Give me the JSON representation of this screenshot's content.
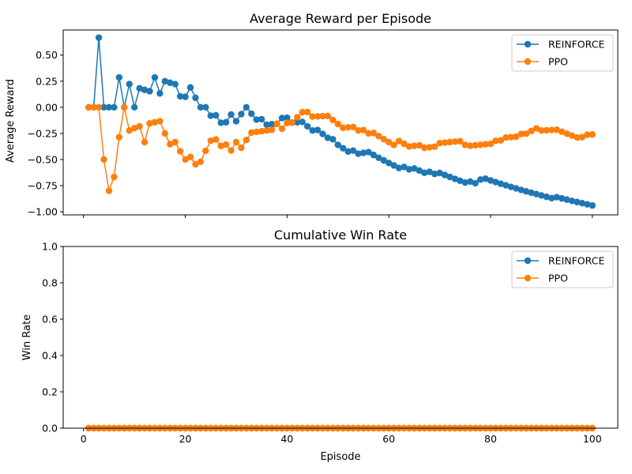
{
  "chart_data": [
    {
      "type": "line",
      "title": "Average Reward per Episode",
      "xlabel": "",
      "ylabel": "Average Reward",
      "xlim": [
        -4,
        105
      ],
      "ylim": [
        -1.03,
        0.74
      ],
      "xticks": [
        0,
        20,
        40,
        60,
        80,
        100
      ],
      "xtick_labels_visible": false,
      "yticks": [
        -1.0,
        -0.75,
        -0.5,
        -0.25,
        0.0,
        0.25,
        0.5
      ],
      "ytick_labels": [
        "−1.00",
        "−0.75",
        "−0.50",
        "−0.25",
        "0.00",
        "0.25",
        "0.50"
      ],
      "grid": false,
      "legend": "top-right",
      "x": [
        1,
        2,
        3,
        4,
        5,
        6,
        7,
        8,
        9,
        10,
        11,
        12,
        13,
        14,
        15,
        16,
        17,
        18,
        19,
        20,
        21,
        22,
        23,
        24,
        25,
        26,
        27,
        28,
        29,
        30,
        31,
        32,
        33,
        34,
        35,
        36,
        37,
        38,
        39,
        40,
        41,
        42,
        43,
        44,
        45,
        46,
        47,
        48,
        49,
        50,
        51,
        52,
        53,
        54,
        55,
        56,
        57,
        58,
        59,
        60,
        61,
        62,
        63,
        64,
        65,
        66,
        67,
        68,
        69,
        70,
        71,
        72,
        73,
        74,
        75,
        76,
        77,
        78,
        79,
        80,
        81,
        82,
        83,
        84,
        85,
        86,
        87,
        88,
        89,
        90,
        91,
        92,
        93,
        94,
        95,
        96,
        97,
        98,
        99,
        100
      ],
      "series": [
        {
          "name": "REINFORCE",
          "color": "#1f77b4",
          "values": [
            0.0,
            0.0,
            0.667,
            0.0,
            0.0,
            0.0,
            0.286,
            0.0,
            0.222,
            0.0,
            0.182,
            0.167,
            0.154,
            0.286,
            0.133,
            0.25,
            0.235,
            0.222,
            0.105,
            0.1,
            0.19,
            0.091,
            0.0,
            0.0,
            -0.08,
            -0.077,
            -0.148,
            -0.143,
            -0.069,
            -0.133,
            -0.065,
            0.0,
            -0.061,
            -0.118,
            -0.114,
            -0.167,
            -0.162,
            -0.158,
            -0.103,
            -0.1,
            -0.146,
            -0.143,
            -0.14,
            -0.182,
            -0.222,
            -0.217,
            -0.255,
            -0.292,
            -0.306,
            -0.36,
            -0.392,
            -0.423,
            -0.415,
            -0.444,
            -0.436,
            -0.429,
            -0.456,
            -0.483,
            -0.508,
            -0.533,
            -0.557,
            -0.581,
            -0.571,
            -0.594,
            -0.585,
            -0.606,
            -0.627,
            -0.618,
            -0.638,
            -0.629,
            -0.648,
            -0.667,
            -0.685,
            -0.703,
            -0.72,
            -0.711,
            -0.727,
            -0.692,
            -0.684,
            -0.7,
            -0.716,
            -0.732,
            -0.747,
            -0.762,
            -0.776,
            -0.791,
            -0.805,
            -0.818,
            -0.831,
            -0.844,
            -0.857,
            -0.87,
            -0.86,
            -0.872,
            -0.884,
            -0.896,
            -0.907,
            -0.918,
            -0.929,
            -0.94
          ]
        },
        {
          "name": "PPO",
          "color": "#ff7f0e",
          "values": [
            0.0,
            0.0,
            0.0,
            -0.5,
            -0.8,
            -0.667,
            -0.286,
            0.0,
            -0.222,
            -0.2,
            -0.182,
            -0.333,
            -0.154,
            -0.143,
            -0.133,
            -0.25,
            -0.353,
            -0.333,
            -0.421,
            -0.5,
            -0.476,
            -0.545,
            -0.522,
            -0.417,
            -0.32,
            -0.308,
            -0.37,
            -0.357,
            -0.414,
            -0.333,
            -0.387,
            -0.313,
            -0.242,
            -0.235,
            -0.229,
            -0.222,
            -0.216,
            -0.158,
            -0.205,
            -0.15,
            -0.146,
            -0.095,
            -0.047,
            -0.045,
            -0.089,
            -0.087,
            -0.085,
            -0.083,
            -0.122,
            -0.16,
            -0.196,
            -0.192,
            -0.189,
            -0.222,
            -0.218,
            -0.25,
            -0.246,
            -0.276,
            -0.305,
            -0.333,
            -0.361,
            -0.323,
            -0.349,
            -0.375,
            -0.369,
            -0.364,
            -0.388,
            -0.382,
            -0.377,
            -0.343,
            -0.338,
            -0.333,
            -0.329,
            -0.324,
            -0.36,
            -0.368,
            -0.364,
            -0.359,
            -0.354,
            -0.35,
            -0.321,
            -0.317,
            -0.289,
            -0.286,
            -0.282,
            -0.256,
            -0.253,
            -0.227,
            -0.202,
            -0.222,
            -0.22,
            -0.217,
            -0.215,
            -0.234,
            -0.253,
            -0.271,
            -0.289,
            -0.286,
            -0.263,
            -0.26
          ]
        }
      ]
    },
    {
      "type": "line",
      "title": "Cumulative Win Rate",
      "xlabel": "Episode",
      "ylabel": "Win Rate",
      "xlim": [
        -4,
        105
      ],
      "ylim": [
        0.0,
        1.0
      ],
      "xticks": [
        0,
        20,
        40,
        60,
        80,
        100
      ],
      "xtick_labels": [
        "0",
        "20",
        "40",
        "60",
        "80",
        "100"
      ],
      "yticks": [
        0.0,
        0.2,
        0.4,
        0.6,
        0.8,
        1.0
      ],
      "ytick_labels": [
        "0.0",
        "0.2",
        "0.4",
        "0.6",
        "0.8",
        "1.0"
      ],
      "grid": false,
      "legend": "top-right",
      "x": [
        1,
        2,
        3,
        4,
        5,
        6,
        7,
        8,
        9,
        10,
        11,
        12,
        13,
        14,
        15,
        16,
        17,
        18,
        19,
        20,
        21,
        22,
        23,
        24,
        25,
        26,
        27,
        28,
        29,
        30,
        31,
        32,
        33,
        34,
        35,
        36,
        37,
        38,
        39,
        40,
        41,
        42,
        43,
        44,
        45,
        46,
        47,
        48,
        49,
        50,
        51,
        52,
        53,
        54,
        55,
        56,
        57,
        58,
        59,
        60,
        61,
        62,
        63,
        64,
        65,
        66,
        67,
        68,
        69,
        70,
        71,
        72,
        73,
        74,
        75,
        76,
        77,
        78,
        79,
        80,
        81,
        82,
        83,
        84,
        85,
        86,
        87,
        88,
        89,
        90,
        91,
        92,
        93,
        94,
        95,
        96,
        97,
        98,
        99,
        100
      ],
      "series": [
        {
          "name": "REINFORCE",
          "color": "#1f77b4",
          "values": [
            0,
            0,
            0,
            0,
            0,
            0,
            0,
            0,
            0,
            0,
            0,
            0,
            0,
            0,
            0,
            0,
            0,
            0,
            0,
            0,
            0,
            0,
            0,
            0,
            0,
            0,
            0,
            0,
            0,
            0,
            0,
            0,
            0,
            0,
            0,
            0,
            0,
            0,
            0,
            0,
            0,
            0,
            0,
            0,
            0,
            0,
            0,
            0,
            0,
            0,
            0,
            0,
            0,
            0,
            0,
            0,
            0,
            0,
            0,
            0,
            0,
            0,
            0,
            0,
            0,
            0,
            0,
            0,
            0,
            0,
            0,
            0,
            0,
            0,
            0,
            0,
            0,
            0,
            0,
            0,
            0,
            0,
            0,
            0,
            0,
            0,
            0,
            0,
            0,
            0,
            0,
            0,
            0,
            0,
            0,
            0,
            0,
            0,
            0,
            0
          ]
        },
        {
          "name": "PPO",
          "color": "#ff7f0e",
          "values": [
            0,
            0,
            0,
            0,
            0,
            0,
            0,
            0,
            0,
            0,
            0,
            0,
            0,
            0,
            0,
            0,
            0,
            0,
            0,
            0,
            0,
            0,
            0,
            0,
            0,
            0,
            0,
            0,
            0,
            0,
            0,
            0,
            0,
            0,
            0,
            0,
            0,
            0,
            0,
            0,
            0,
            0,
            0,
            0,
            0,
            0,
            0,
            0,
            0,
            0,
            0,
            0,
            0,
            0,
            0,
            0,
            0,
            0,
            0,
            0,
            0,
            0,
            0,
            0,
            0,
            0,
            0,
            0,
            0,
            0,
            0,
            0,
            0,
            0,
            0,
            0,
            0,
            0,
            0,
            0,
            0,
            0,
            0,
            0,
            0,
            0,
            0,
            0,
            0,
            0,
            0,
            0,
            0,
            0,
            0,
            0,
            0,
            0,
            0,
            0
          ]
        }
      ]
    }
  ]
}
